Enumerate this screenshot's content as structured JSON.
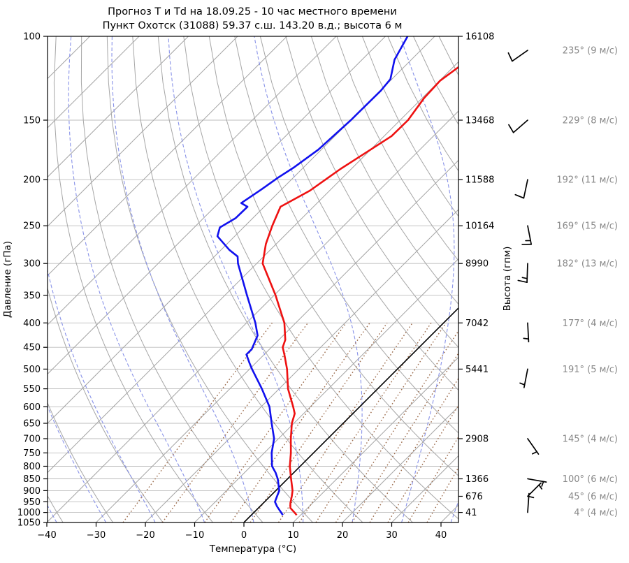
{
  "title": {
    "line1": "Прогноз Т и Td на 18.09.25 - 10 час местного времени",
    "line2": "Пункт Охотск (31088) 59.37 с.ш. 143.20 в.д.; высота 6 м"
  },
  "axes": {
    "pressure_label": "Давление (гПа)",
    "height_label": "Высота (гпм)",
    "temp_label": "Температура (°C)",
    "pressure_ticks": [
      100,
      150,
      200,
      250,
      300,
      350,
      400,
      450,
      500,
      550,
      600,
      650,
      700,
      750,
      800,
      850,
      900,
      950,
      1000,
      1050
    ],
    "temp_ticks": [
      -40,
      -30,
      -20,
      -10,
      0,
      10,
      20,
      30,
      40
    ],
    "temp_min": -40,
    "temp_max": 43.5,
    "pressure_min": 100,
    "pressure_max": 1050,
    "height_ticks": [
      {
        "p": 100,
        "label": "16108"
      },
      {
        "p": 150,
        "label": "13468"
      },
      {
        "p": 200,
        "label": "11588"
      },
      {
        "p": 250,
        "label": "10164"
      },
      {
        "p": 300,
        "label": "8990"
      },
      {
        "p": 400,
        "label": "7042"
      },
      {
        "p": 500,
        "label": "5441"
      },
      {
        "p": 700,
        "label": "2908"
      },
      {
        "p": 850,
        "label": "1366"
      },
      {
        "p": 925,
        "label": "676"
      },
      {
        "p": 1000,
        "label": "41"
      }
    ]
  },
  "chart_data": {
    "type": "line",
    "projection": "skew-T log-p, 45deg skew",
    "xlabel": "Температура (°C)",
    "ylabel": "Давление (гПа)",
    "y2label": "Высота (гпм)",
    "xlim": [
      -40,
      43.5
    ],
    "ylim": [
      1050,
      100
    ],
    "series": [
      {
        "name": "temperature",
        "color": "#ee1111",
        "points": [
          [
            1013,
            9.2
          ],
          [
            1000,
            8.2
          ],
          [
            979,
            6.5
          ],
          [
            956,
            5.5
          ],
          [
            925,
            4.4
          ],
          [
            900,
            3.4
          ],
          [
            850,
            0.7
          ],
          [
            800,
            -2.1
          ],
          [
            750,
            -4.6
          ],
          [
            700,
            -7.5
          ],
          [
            650,
            -10.4
          ],
          [
            620,
            -11.8
          ],
          [
            600,
            -13.5
          ],
          [
            550,
            -18.2
          ],
          [
            500,
            -22.4
          ],
          [
            466,
            -25.9
          ],
          [
            450,
            -27.7
          ],
          [
            434,
            -28.7
          ],
          [
            400,
            -32.3
          ],
          [
            350,
            -39.7
          ],
          [
            300,
            -48.8
          ],
          [
            273,
            -52.1
          ],
          [
            250,
            -54.5
          ],
          [
            228,
            -56.7
          ],
          [
            211,
            -54.0
          ],
          [
            190,
            -52.2
          ],
          [
            173,
            -50.0
          ],
          [
            162,
            -48.5
          ],
          [
            150,
            -48.4
          ],
          [
            135,
            -49.6
          ],
          [
            124,
            -49.9
          ],
          [
            116,
            -48.9
          ]
        ]
      },
      {
        "name": "dewpoint",
        "color": "#1111ee",
        "points": [
          [
            1013,
            6.4
          ],
          [
            1000,
            5.5
          ],
          [
            972,
            3.5
          ],
          [
            950,
            2.1
          ],
          [
            925,
            1.4
          ],
          [
            900,
            0.7
          ],
          [
            850,
            -2.0
          ],
          [
            825,
            -3.7
          ],
          [
            800,
            -5.7
          ],
          [
            750,
            -8.5
          ],
          [
            700,
            -10.9
          ],
          [
            650,
            -14.5
          ],
          [
            600,
            -18.3
          ],
          [
            550,
            -23.5
          ],
          [
            500,
            -29.5
          ],
          [
            486,
            -31.2
          ],
          [
            466,
            -33.6
          ],
          [
            454,
            -33.6
          ],
          [
            425,
            -35.2
          ],
          [
            400,
            -38.2
          ],
          [
            350,
            -45.5
          ],
          [
            300,
            -53.8
          ],
          [
            290,
            -55.3
          ],
          [
            281,
            -58.3
          ],
          [
            263,
            -63.5
          ],
          [
            252,
            -64.8
          ],
          [
            241,
            -63.5
          ],
          [
            228,
            -63.4
          ],
          [
            224,
            -65.4
          ],
          [
            210,
            -64.1
          ],
          [
            198,
            -63.1
          ],
          [
            189,
            -62.0
          ],
          [
            173,
            -60.6
          ],
          [
            150,
            -60.0
          ],
          [
            130,
            -59.9
          ],
          [
            123,
            -60.3
          ],
          [
            112,
            -63.4
          ],
          [
            100,
            -65.5
          ]
        ]
      }
    ],
    "zero_isotherm": {
      "temp_c": 0,
      "color": "#000000"
    },
    "background": {
      "isotherm_min": -140,
      "isotherm_max": 40,
      "isotherm_step": 10,
      "isotherm_color": "#a6a6a6",
      "pressure_line_color": "#bdbdbd",
      "dry_adiabats_theta": [
        -40,
        -30,
        -20,
        -10,
        0,
        10,
        20,
        30,
        40,
        50,
        60,
        70,
        80,
        90,
        100,
        110,
        120,
        130,
        140,
        150
      ],
      "dry_adiabat_color": "#a6a6a6",
      "moist_adiabat_starts": [
        -38,
        -28,
        -18,
        -8,
        2,
        12,
        22,
        32,
        42
      ],
      "moist_adiabat_color": "#8892e8",
      "mixing_ratios_gkg": [
        0.5,
        1,
        2,
        3,
        4,
        6,
        8,
        10,
        13,
        16,
        20,
        25,
        32,
        40
      ],
      "mixing_line_color": "#9b6a4a"
    },
    "winds": [
      {
        "label": "235° (9 м/с)",
        "dir_deg": 235,
        "speed_ms": 9,
        "p": 107
      },
      {
        "label": "229° (8 м/с)",
        "dir_deg": 229,
        "speed_ms": 8,
        "p": 150
      },
      {
        "label": "192° (11 м/с)",
        "dir_deg": 192,
        "speed_ms": 11,
        "p": 200
      },
      {
        "label": "169° (15 м/с)",
        "dir_deg": 169,
        "speed_ms": 15,
        "p": 250
      },
      {
        "label": "182° (13 м/с)",
        "dir_deg": 182,
        "speed_ms": 13,
        "p": 300
      },
      {
        "label": "177° (4 м/с)",
        "dir_deg": 177,
        "speed_ms": 4,
        "p": 400
      },
      {
        "label": "191° (5 м/с)",
        "dir_deg": 191,
        "speed_ms": 5,
        "p": 500
      },
      {
        "label": "145° (4 м/с)",
        "dir_deg": 145,
        "speed_ms": 4,
        "p": 700
      },
      {
        "label": "100° (6 м/с)",
        "dir_deg": 100,
        "speed_ms": 6,
        "p": 850
      },
      {
        "label": "45° (6 м/с)",
        "dir_deg": 45,
        "speed_ms": 6,
        "p": 925
      },
      {
        "label": "4° (4 м/с)",
        "dir_deg": 4,
        "speed_ms": 4,
        "p": 1000
      }
    ],
    "wind_label_color": "#888888",
    "wind_barb_color": "#000000"
  }
}
